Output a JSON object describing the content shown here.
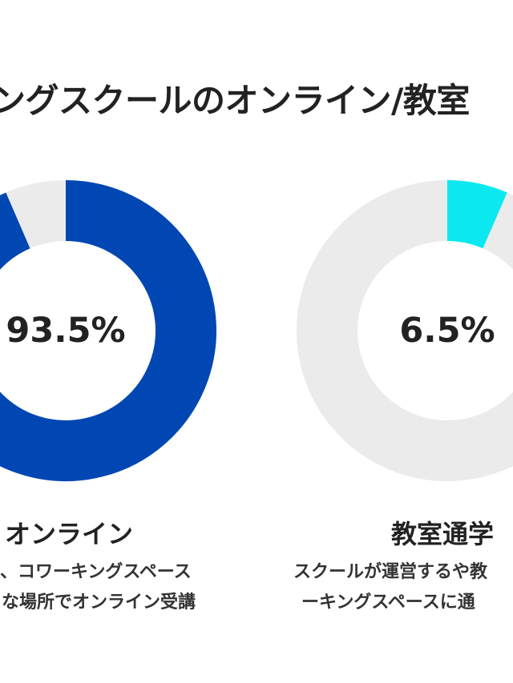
{
  "title": "ングスクールのオンライン/教室",
  "chart_data": [
    {
      "type": "pie",
      "variant": "donut",
      "value": 93.5,
      "value_label": "93.5%",
      "caption": "オンライン",
      "description": [
        "、コワーキングスペース",
        "な場所でオンライン受講"
      ],
      "colors": {
        "fill": "#0047b3",
        "track": "#ebebeb"
      }
    },
    {
      "type": "pie",
      "variant": "donut",
      "value": 6.5,
      "value_label": "6.5%",
      "caption": "教室通学",
      "description": [
        "スクールが運営するや教",
        "ーキングスペースに通"
      ],
      "colors": {
        "fill": "#0ce8f0",
        "track": "#ebebeb"
      }
    }
  ]
}
